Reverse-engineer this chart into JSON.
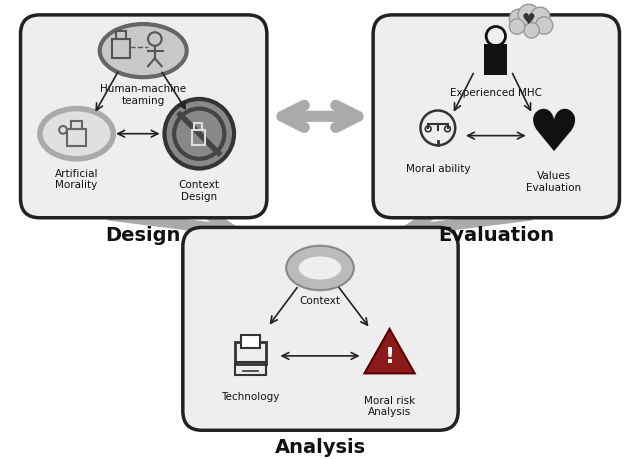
{
  "bg_color": "#ffffff",
  "box_fill": "#eeeeee",
  "box_edge": "#222222",
  "arrow_gray": "#aaaaaa",
  "dark_arrow": "#222222",
  "red_color": "#8b1a1a",
  "black_color": "#111111",
  "title_design": "Design",
  "title_eval": "Evaluation",
  "title_analysis": "Analysis"
}
